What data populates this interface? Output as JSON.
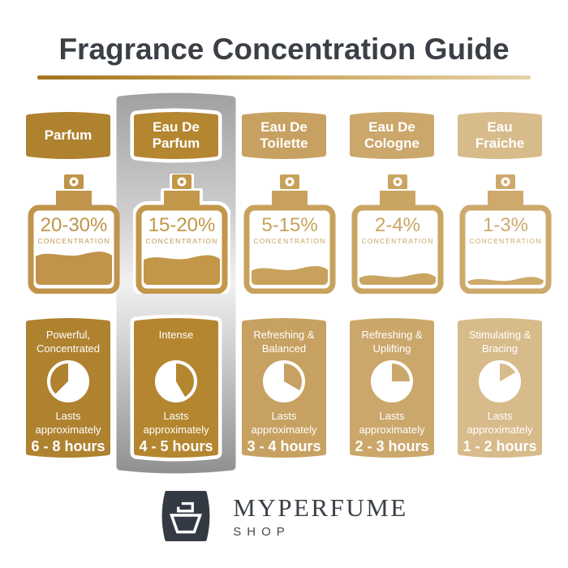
{
  "title": "Fragrance Concentration Guide",
  "accents": {
    "title_color": "#3B4046",
    "underline_from": "#A1741F",
    "underline_mid": "#C9A254",
    "underline_to": "#E5D2A8",
    "highlight_grays": [
      "#A2A2A2",
      "#CDCDCD",
      "#F1F1F1",
      "#CFCFCF",
      "#929292"
    ],
    "logo_bg": "#343A43"
  },
  "shared": {
    "concentration_caption": "CONCENTRATION",
    "lasts_line1": "Lasts",
    "lasts_line2": "approximately"
  },
  "columns": [
    {
      "name": "Parfum",
      "label_line1": "Parfum",
      "label_line2": "",
      "concentration": "20-30%",
      "fill_level": 0.43,
      "char_line1": "Powerful,",
      "char_line2": "Concentrated",
      "duration": "6 - 8 hours",
      "dial": {
        "white_from": 0,
        "white_to": 225
      },
      "highlighted": false,
      "colors": {
        "header": "#AF8230",
        "bottle": "#C0944A",
        "card": "#AF8230"
      }
    },
    {
      "name": "Eau De Parfum",
      "label_line1": "Eau De",
      "label_line2": "Parfum",
      "concentration": "15-20%",
      "fill_level": 0.38,
      "char_line1": "Intense",
      "char_line2": "",
      "duration": "4 - 5 hours",
      "dial": {
        "white_from": 150,
        "white_to": 360
      },
      "highlighted": true,
      "colors": {
        "header": "#B4862F",
        "bottle": "#C29749",
        "card": "#B4862F"
      }
    },
    {
      "name": "Eau De Toilette",
      "label_line1": "Eau De",
      "label_line2": "Toilette",
      "concentration": "5-15%",
      "fill_level": 0.23,
      "char_line1": "Refreshing &",
      "char_line2": "Balanced",
      "duration": "3 - 4 hours",
      "dial": {
        "white_from": 120,
        "white_to": 360
      },
      "highlighted": false,
      "colors": {
        "header": "#C7A161",
        "bottle": "#C8A25C",
        "card": "#C7A161"
      }
    },
    {
      "name": "Eau De Cologne",
      "label_line1": "Eau De",
      "label_line2": "Cologne",
      "concentration": "2-4%",
      "fill_level": 0.13,
      "char_line1": "Refreshing &",
      "char_line2": "Uplifting",
      "duration": "2 - 3 hours",
      "dial": {
        "white_from": 90,
        "white_to": 360
      },
      "highlighted": false,
      "colors": {
        "header": "#CBA76B",
        "bottle": "#CAA562",
        "card": "#CBA76B"
      }
    },
    {
      "name": "Eau Fraiche",
      "label_line1": "Eau",
      "label_line2": "Fraiche",
      "concentration": "1-3%",
      "fill_level": 0.08,
      "char_line1": "Stimulating &",
      "char_line2": "Bracing",
      "duration": "1 - 2 hours",
      "dial": {
        "white_from": 60,
        "white_to": 360
      },
      "highlighted": false,
      "colors": {
        "header": "#D8BB8B",
        "bottle": "#CDAA6C",
        "card": "#D8BB8B"
      }
    }
  ],
  "footer": {
    "brand": "MYPERFUME",
    "sub": "SHOP"
  }
}
